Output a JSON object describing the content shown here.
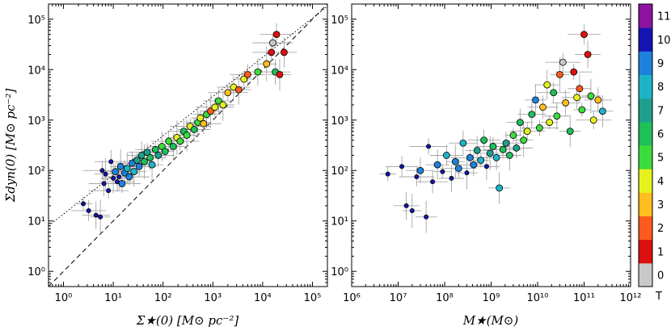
{
  "chart_data": [
    {
      "type": "scatter",
      "panel": "left",
      "xlabel": "Σ★(0) [M⊙ pc⁻²]",
      "ylabel": "Σdyn(0) [M⊙ pc⁻²]",
      "xscale": "log",
      "yscale": "log",
      "xlim": [
        0.5,
        200000
      ],
      "ylim": [
        0.5,
        200000
      ],
      "xticks": [
        {
          "v": 1,
          "label": "10⁰"
        },
        {
          "v": 10,
          "label": "10¹"
        },
        {
          "v": 100,
          "label": "10²"
        },
        {
          "v": 1000,
          "label": "10³"
        },
        {
          "v": 10000,
          "label": "10⁴"
        },
        {
          "v": 100000,
          "label": "10⁵"
        }
      ],
      "yticks": [
        {
          "v": 1,
          "label": "10⁰"
        },
        {
          "v": 10,
          "label": "10¹"
        },
        {
          "v": 100,
          "label": "10²"
        },
        {
          "v": 1000,
          "label": "10³"
        },
        {
          "v": 10000,
          "label": "10⁴"
        },
        {
          "v": 100000,
          "label": "10⁵"
        }
      ],
      "lines": [
        {
          "name": "one-to-one",
          "style": "dashed",
          "x": [
            0.5,
            200000
          ],
          "y": [
            0.5,
            200000
          ]
        },
        {
          "name": "fit",
          "style": "dotted",
          "x": [
            0.5,
            200000
          ],
          "y": [
            8,
            180000
          ]
        }
      ],
      "points": [
        {
          "x": 2.5,
          "y": 22,
          "T": 10
        },
        {
          "x": 3.2,
          "y": 16,
          "T": 10
        },
        {
          "x": 4.5,
          "y": 13,
          "T": 10
        },
        {
          "x": 5.5,
          "y": 12,
          "T": 10
        },
        {
          "x": 6,
          "y": 100,
          "T": 10
        },
        {
          "x": 6.5,
          "y": 55,
          "T": 10
        },
        {
          "x": 7,
          "y": 85,
          "T": 10
        },
        {
          "x": 8,
          "y": 40,
          "T": 10
        },
        {
          "x": 9,
          "y": 150,
          "T": 10
        },
        {
          "x": 10,
          "y": 70,
          "T": 10
        },
        {
          "x": 11,
          "y": 95,
          "T": 9
        },
        {
          "x": 12,
          "y": 60,
          "T": 10
        },
        {
          "x": 13,
          "y": 75,
          "T": 10
        },
        {
          "x": 14,
          "y": 120,
          "T": 9
        },
        {
          "x": 15,
          "y": 55,
          "T": 9
        },
        {
          "x": 17,
          "y": 90,
          "T": 9
        },
        {
          "x": 19,
          "y": 110,
          "T": 8
        },
        {
          "x": 21,
          "y": 75,
          "T": 9
        },
        {
          "x": 24,
          "y": 140,
          "T": 9
        },
        {
          "x": 26,
          "y": 95,
          "T": 8
        },
        {
          "x": 30,
          "y": 160,
          "T": 7
        },
        {
          "x": 33,
          "y": 120,
          "T": 9
        },
        {
          "x": 37,
          "y": 200,
          "T": 7
        },
        {
          "x": 42,
          "y": 150,
          "T": 6
        },
        {
          "x": 48,
          "y": 230,
          "T": 7
        },
        {
          "x": 55,
          "y": 180,
          "T": 6
        },
        {
          "x": 60,
          "y": 130,
          "T": 8
        },
        {
          "x": 70,
          "y": 260,
          "T": 6
        },
        {
          "x": 80,
          "y": 200,
          "T": 7
        },
        {
          "x": 95,
          "y": 300,
          "T": 5
        },
        {
          "x": 110,
          "y": 240,
          "T": 6
        },
        {
          "x": 130,
          "y": 380,
          "T": 5
        },
        {
          "x": 160,
          "y": 300,
          "T": 6
        },
        {
          "x": 190,
          "y": 450,
          "T": 4
        },
        {
          "x": 220,
          "y": 380,
          "T": 5
        },
        {
          "x": 260,
          "y": 600,
          "T": 6
        },
        {
          "x": 300,
          "y": 500,
          "T": 5
        },
        {
          "x": 350,
          "y": 750,
          "T": 4
        },
        {
          "x": 420,
          "y": 650,
          "T": 6
        },
        {
          "x": 500,
          "y": 900,
          "T": 5
        },
        {
          "x": 560,
          "y": 1100,
          "T": 4
        },
        {
          "x": 650,
          "y": 850,
          "T": 3
        },
        {
          "x": 750,
          "y": 1300,
          "T": 5
        },
        {
          "x": 900,
          "y": 1500,
          "T": 2
        },
        {
          "x": 1100,
          "y": 1800,
          "T": 4
        },
        {
          "x": 1300,
          "y": 2400,
          "T": 5
        },
        {
          "x": 1600,
          "y": 2000,
          "T": 4
        },
        {
          "x": 2000,
          "y": 3500,
          "T": 3
        },
        {
          "x": 2600,
          "y": 4500,
          "T": 4
        },
        {
          "x": 3300,
          "y": 4000,
          "T": 2
        },
        {
          "x": 4200,
          "y": 6500,
          "T": 4
        },
        {
          "x": 5000,
          "y": 8000,
          "T": 2
        },
        {
          "x": 8000,
          "y": 9000,
          "T": 5
        },
        {
          "x": 12000,
          "y": 13000,
          "T": 3
        },
        {
          "x": 15000,
          "y": 22000,
          "T": 1
        },
        {
          "x": 18000,
          "y": 9000,
          "T": 6
        },
        {
          "x": 22000,
          "y": 8000,
          "T": 1
        },
        {
          "x": 16000,
          "y": 34000,
          "T": 0
        },
        {
          "x": 19000,
          "y": 50000,
          "T": 1
        },
        {
          "x": 27000,
          "y": 22000,
          "T": 1
        }
      ]
    },
    {
      "type": "scatter",
      "panel": "right",
      "xlabel": "M★(M⊙)",
      "ylabel": "",
      "xscale": "log",
      "yscale": "log",
      "xlim": [
        1000000,
        1000000000000
      ],
      "ylim": [
        0.5,
        200000
      ],
      "xticks": [
        {
          "v": 1000000,
          "label": "10⁶"
        },
        {
          "v": 10000000,
          "label": "10⁷"
        },
        {
          "v": 100000000,
          "label": "10⁸"
        },
        {
          "v": 1000000000,
          "label": "10⁹"
        },
        {
          "v": 10000000000,
          "label": "10¹⁰"
        },
        {
          "v": 100000000000,
          "label": "10¹¹"
        },
        {
          "v": 1000000000000,
          "label": "10¹²"
        }
      ],
      "yticks": [
        {
          "v": 1,
          "label": "10⁰"
        },
        {
          "v": 10,
          "label": "10¹"
        },
        {
          "v": 100,
          "label": "10²"
        },
        {
          "v": 1000,
          "label": "10³"
        },
        {
          "v": 10000,
          "label": "10⁴"
        },
        {
          "v": 100000,
          "label": "10⁵"
        }
      ],
      "points": [
        {
          "x": 6000000,
          "y": 85,
          "T": 10
        },
        {
          "x": 12000000,
          "y": 120,
          "T": 10
        },
        {
          "x": 15000000,
          "y": 20,
          "T": 10
        },
        {
          "x": 20000000,
          "y": 16,
          "T": 10
        },
        {
          "x": 25000000,
          "y": 75,
          "T": 10
        },
        {
          "x": 30000000,
          "y": 100,
          "T": 9
        },
        {
          "x": 40000000,
          "y": 12,
          "T": 10
        },
        {
          "x": 45000000,
          "y": 300,
          "T": 10
        },
        {
          "x": 55000000,
          "y": 60,
          "T": 10
        },
        {
          "x": 70000000,
          "y": 130,
          "T": 9
        },
        {
          "x": 90000000,
          "y": 95,
          "T": 10
        },
        {
          "x": 110000000,
          "y": 200,
          "T": 8
        },
        {
          "x": 140000000,
          "y": 70,
          "T": 10
        },
        {
          "x": 170000000,
          "y": 150,
          "T": 9
        },
        {
          "x": 200000000,
          "y": 110,
          "T": 9
        },
        {
          "x": 250000000,
          "y": 350,
          "T": 8
        },
        {
          "x": 300000000,
          "y": 90,
          "T": 10
        },
        {
          "x": 350000000,
          "y": 180,
          "T": 9
        },
        {
          "x": 420000000,
          "y": 130,
          "T": 9
        },
        {
          "x": 500000000,
          "y": 250,
          "T": 7
        },
        {
          "x": 600000000,
          "y": 160,
          "T": 8
        },
        {
          "x": 700000000,
          "y": 400,
          "T": 6
        },
        {
          "x": 800000000,
          "y": 120,
          "T": 10
        },
        {
          "x": 950000000,
          "y": 220,
          "T": 7
        },
        {
          "x": 1100000000,
          "y": 300,
          "T": 6
        },
        {
          "x": 1300000000,
          "y": 180,
          "T": 8
        },
        {
          "x": 1500000000,
          "y": 45,
          "T": 8
        },
        {
          "x": 1800000000,
          "y": 260,
          "T": 6
        },
        {
          "x": 2100000000,
          "y": 350,
          "T": 7
        },
        {
          "x": 2500000000,
          "y": 200,
          "T": 6
        },
        {
          "x": 3000000000,
          "y": 500,
          "T": 5
        },
        {
          "x": 3500000000,
          "y": 280,
          "T": 7
        },
        {
          "x": 4200000000,
          "y": 900,
          "T": 6
        },
        {
          "x": 5000000000,
          "y": 400,
          "T": 5
        },
        {
          "x": 6000000000,
          "y": 600,
          "T": 4
        },
        {
          "x": 7500000000,
          "y": 1300,
          "T": 6
        },
        {
          "x": 9000000000,
          "y": 2500,
          "T": 9
        },
        {
          "x": 11000000000,
          "y": 700,
          "T": 5
        },
        {
          "x": 13000000000,
          "y": 1800,
          "T": 3
        },
        {
          "x": 16000000000,
          "y": 5000,
          "T": 4
        },
        {
          "x": 18000000000,
          "y": 900,
          "T": 4
        },
        {
          "x": 22000000000,
          "y": 3500,
          "T": 6
        },
        {
          "x": 26000000000,
          "y": 1200,
          "T": 5
        },
        {
          "x": 30000000000,
          "y": 8000,
          "T": 2
        },
        {
          "x": 35000000000,
          "y": 14000,
          "T": 0
        },
        {
          "x": 40000000000,
          "y": 2200,
          "T": 3
        },
        {
          "x": 50000000000,
          "y": 600,
          "T": 6
        },
        {
          "x": 60000000000,
          "y": 9000,
          "T": 1
        },
        {
          "x": 70000000000,
          "y": 2800,
          "T": 4
        },
        {
          "x": 80000000000,
          "y": 4200,
          "T": 2
        },
        {
          "x": 90000000000,
          "y": 1600,
          "T": 5
        },
        {
          "x": 100000000000,
          "y": 50000,
          "T": 1
        },
        {
          "x": 120000000000,
          "y": 20000,
          "T": 1
        },
        {
          "x": 140000000000,
          "y": 3000,
          "T": 5
        },
        {
          "x": 160000000000,
          "y": 1000,
          "T": 4
        },
        {
          "x": 200000000000,
          "y": 2500,
          "T": 3
        },
        {
          "x": 250000000000,
          "y": 1500,
          "T": 8
        }
      ]
    }
  ],
  "colorbar": {
    "label": "T",
    "values": [
      0,
      1,
      2,
      3,
      4,
      5,
      6,
      7,
      8,
      9,
      10,
      11
    ],
    "tick_labels": [
      "0",
      "1",
      "2",
      "3",
      "4",
      "5",
      "6",
      "7",
      "8",
      "9",
      "10",
      "11"
    ],
    "colors": [
      "#c8c8c8",
      "#dd1010",
      "#ff5a1e",
      "#ffbe1e",
      "#e6f21e",
      "#3cdc3c",
      "#1fbf5a",
      "#1ea08c",
      "#1eb4c8",
      "#1e82dc",
      "#1414b4",
      "#8c14a0"
    ]
  }
}
